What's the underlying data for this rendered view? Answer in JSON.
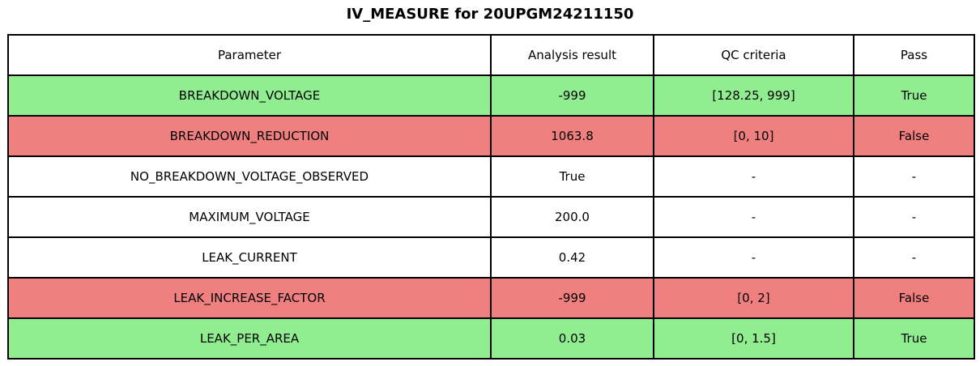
{
  "title": "IV_MEASURE for 20UPGM24211150",
  "colors": {
    "pass": "#90EE90",
    "fail": "#F08080",
    "none": "#FFFFFF",
    "border": "#000000",
    "text": "#000000"
  },
  "chart_data": {
    "type": "table",
    "title": "IV_MEASURE for 20UPGM24211150",
    "columns": [
      "Parameter",
      "Analysis result",
      "QC criteria",
      "Pass"
    ],
    "rows": [
      {
        "parameter": "BREAKDOWN_VOLTAGE",
        "analysis_result": "-999",
        "qc_criteria": "[128.25, 999]",
        "pass": "True",
        "status": "pass"
      },
      {
        "parameter": "BREAKDOWN_REDUCTION",
        "analysis_result": "1063.8",
        "qc_criteria": "[0, 10]",
        "pass": "False",
        "status": "fail"
      },
      {
        "parameter": "NO_BREAKDOWN_VOLTAGE_OBSERVED",
        "analysis_result": "True",
        "qc_criteria": "-",
        "pass": "-",
        "status": "none"
      },
      {
        "parameter": "MAXIMUM_VOLTAGE",
        "analysis_result": "200.0",
        "qc_criteria": "-",
        "pass": "-",
        "status": "none"
      },
      {
        "parameter": "LEAK_CURRENT",
        "analysis_result": "0.42",
        "qc_criteria": "-",
        "pass": "-",
        "status": "none"
      },
      {
        "parameter": "LEAK_INCREASE_FACTOR",
        "analysis_result": "-999",
        "qc_criteria": "[0, 2]",
        "pass": "False",
        "status": "fail"
      },
      {
        "parameter": "LEAK_PER_AREA",
        "analysis_result": "0.03",
        "qc_criteria": "[0, 1.5]",
        "pass": "True",
        "status": "pass"
      }
    ]
  }
}
